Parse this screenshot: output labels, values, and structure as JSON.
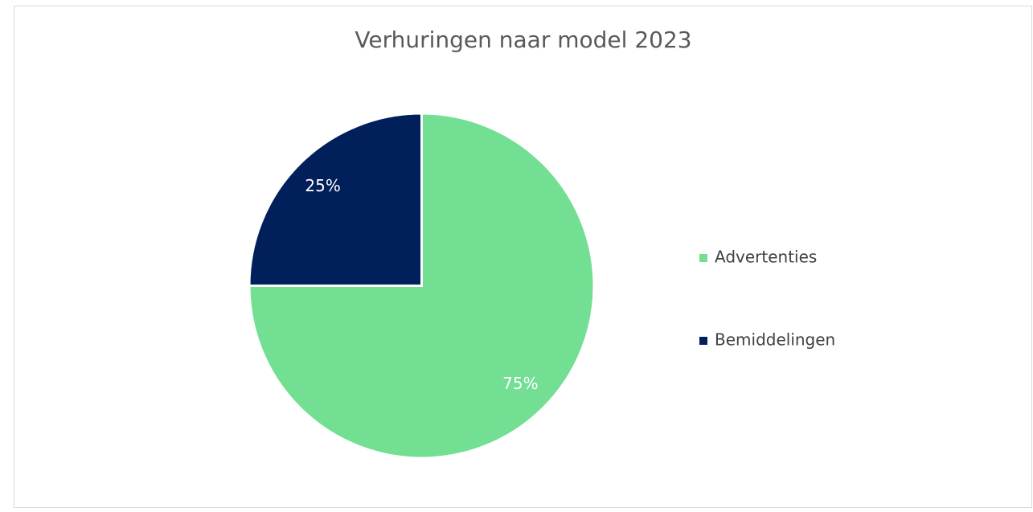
{
  "chart_data": {
    "type": "pie",
    "title": "Verhuringen naar model 2023",
    "categories": [
      "Advertenties",
      "Bemiddelingen"
    ],
    "values": [
      75,
      25
    ],
    "value_labels": [
      "75%",
      "25%"
    ],
    "colors": [
      "#72df93",
      "#001f5b"
    ],
    "legend": "right"
  }
}
